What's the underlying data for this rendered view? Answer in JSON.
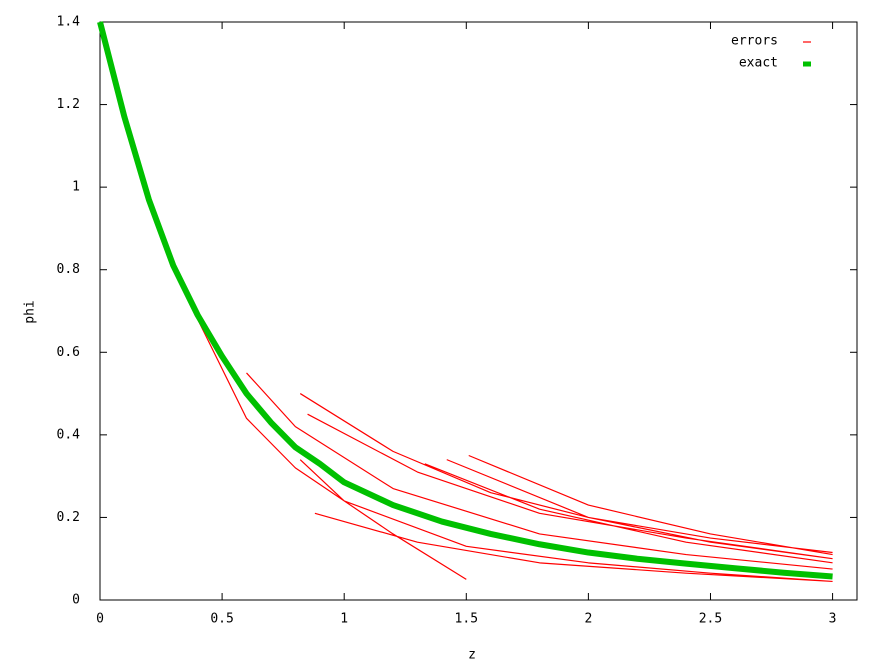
{
  "chart_data": {
    "type": "line",
    "xlabel": "z",
    "ylabel": "phi",
    "xlim": [
      0,
      3.1
    ],
    "ylim": [
      0,
      1.4
    ],
    "xticks": [
      0,
      0.5,
      1,
      1.5,
      2,
      2.5,
      3
    ],
    "yticks": [
      0,
      0.2,
      0.4,
      0.6,
      0.8,
      1,
      1.2,
      1.4
    ],
    "series": [
      {
        "name": "errors",
        "color": "#ff0000",
        "width": 1.2,
        "x": [
          0.4,
          0.6,
          0.8,
          1.0,
          1.5,
          2.0,
          2.5,
          3.0,
          null,
          0.82,
          1.2,
          1.6,
          2.0,
          2.5,
          3.0,
          null,
          0.85,
          1.3,
          1.8,
          2.4,
          3.0,
          null,
          1.33,
          1.8,
          2.4,
          3.0,
          null,
          1.42,
          2.0,
          2.5,
          3.0,
          null,
          1.51,
          2.0,
          2.5,
          3.0,
          null,
          0.88,
          1.3,
          1.8,
          2.4,
          3.0,
          null,
          0.82,
          1.0,
          1.2,
          1.5,
          null,
          0.6,
          0.8,
          1.2,
          1.8,
          2.4,
          3.0
        ],
        "values": [
          0.68,
          0.44,
          0.32,
          0.24,
          0.13,
          0.09,
          0.065,
          0.045,
          null,
          0.5,
          0.36,
          0.26,
          0.2,
          0.15,
          0.115,
          null,
          0.45,
          0.31,
          0.21,
          0.15,
          0.1,
          null,
          0.33,
          0.22,
          0.14,
          0.09,
          null,
          0.34,
          0.2,
          0.14,
          0.1,
          null,
          0.35,
          0.23,
          0.16,
          0.11,
          null,
          0.21,
          0.14,
          0.09,
          0.065,
          0.045,
          null,
          0.34,
          0.24,
          0.16,
          0.05,
          null,
          0.55,
          0.42,
          0.27,
          0.16,
          0.11,
          0.075
        ]
      },
      {
        "name": "exact",
        "color": "#00c000",
        "width": 6,
        "x": [
          0,
          0.1,
          0.2,
          0.3,
          0.4,
          0.5,
          0.6,
          0.7,
          0.8,
          0.9,
          1.0,
          1.2,
          1.4,
          1.6,
          1.8,
          2.0,
          2.2,
          2.4,
          2.6,
          2.8,
          3.0
        ],
        "values": [
          1.4,
          1.17,
          0.97,
          0.81,
          0.69,
          0.59,
          0.5,
          0.43,
          0.37,
          0.33,
          0.285,
          0.23,
          0.19,
          0.16,
          0.135,
          0.115,
          0.1,
          0.088,
          0.077,
          0.066,
          0.057
        ]
      }
    ]
  }
}
